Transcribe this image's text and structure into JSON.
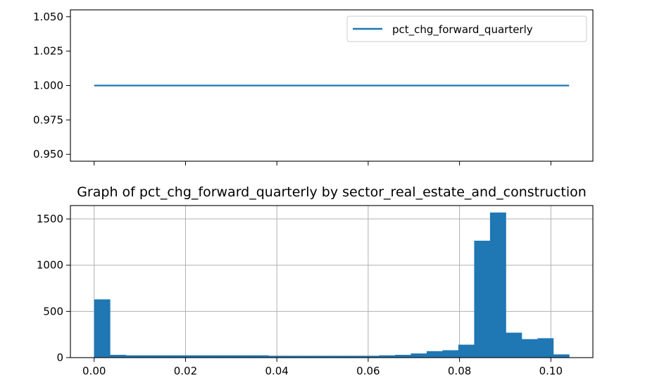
{
  "chart_data": [
    {
      "type": "line",
      "title": "",
      "xlabel": "",
      "ylabel": "",
      "x": [
        0.0,
        0.104
      ],
      "xlim": [
        -0.0052,
        0.1092
      ],
      "ylim": [
        0.945,
        1.055
      ],
      "y_ticks": [
        0.95,
        0.975,
        1.0,
        1.025,
        1.05
      ],
      "y_tick_labels": [
        "0.950",
        "0.975",
        "1.000",
        "1.025",
        "1.050"
      ],
      "x_ticks": [
        0.0,
        0.02,
        0.04,
        0.06,
        0.08,
        0.1
      ],
      "show_x_tick_labels": false,
      "grid": false,
      "legend_position": "top-right",
      "series": [
        {
          "name": "pct_chg_forward_quarterly",
          "values": [
            1.0,
            1.0
          ],
          "color": "#1f77b4"
        }
      ]
    },
    {
      "type": "bar",
      "title": "Graph of pct_chg_forward_quarterly by sector_real_estate_and_construction",
      "xlabel": "",
      "ylabel": "",
      "xlim": [
        -0.0052,
        0.1092
      ],
      "ylim": [
        0,
        1645
      ],
      "x_ticks": [
        0.0,
        0.02,
        0.04,
        0.06,
        0.08,
        0.1
      ],
      "x_tick_labels": [
        "0.00",
        "0.02",
        "0.04",
        "0.06",
        "0.08",
        "0.10"
      ],
      "y_ticks": [
        0,
        500,
        1000,
        1500
      ],
      "y_tick_labels": [
        "0",
        "500",
        "1000",
        "1500"
      ],
      "grid": true,
      "color": "#1f77b4",
      "bin_start": 0.0,
      "bin_width": 0.003467,
      "values": [
        630,
        30,
        25,
        25,
        25,
        25,
        25,
        25,
        25,
        25,
        25,
        20,
        20,
        20,
        20,
        20,
        20,
        20,
        25,
        30,
        45,
        70,
        80,
        140,
        1265,
        1570,
        270,
        200,
        210,
        35
      ]
    }
  ]
}
